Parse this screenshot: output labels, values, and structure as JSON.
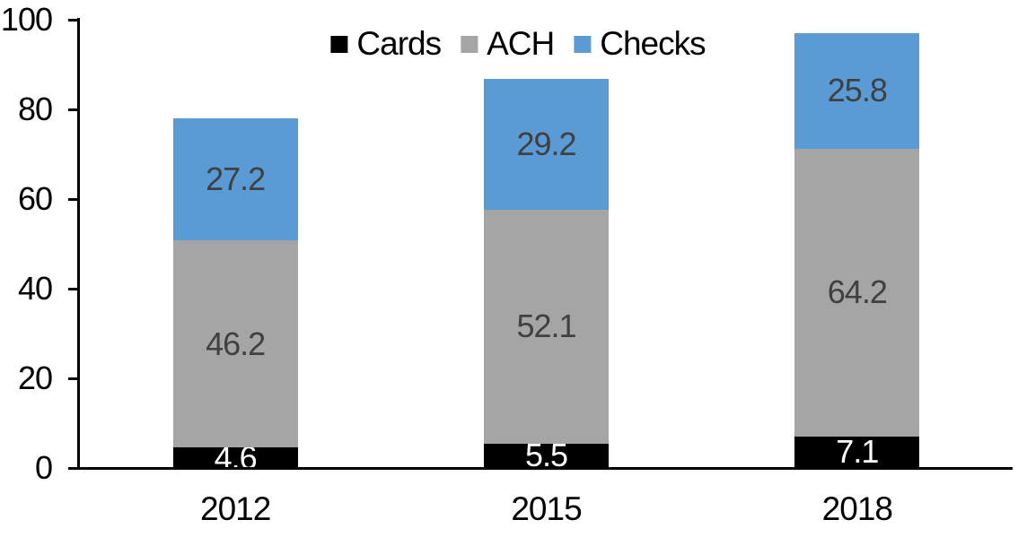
{
  "chart_data": {
    "type": "bar",
    "stacked": true,
    "title": "",
    "categories": [
      "2012",
      "2015",
      "2018"
    ],
    "series": [
      {
        "name": "Cards",
        "color": "#000000",
        "label_color": "#FFFFFF",
        "values": [
          4.6,
          5.5,
          7.1
        ]
      },
      {
        "name": "ACH",
        "color": "#A5A5A5",
        "label_color": "#404040",
        "values": [
          46.2,
          52.1,
          64.2
        ]
      },
      {
        "name": "Checks",
        "color": "#5B9BD5",
        "label_color": "#404040",
        "values": [
          27.2,
          29.2,
          25.8
        ]
      }
    ],
    "totals": [
      78.0,
      86.8,
      97.1
    ],
    "ylim": [
      0,
      100
    ],
    "yticks": [
      0,
      20,
      40,
      60,
      80,
      100
    ],
    "xlabel": "",
    "ylabel": "",
    "grid": false,
    "legend_position": "top",
    "data_labels": true,
    "colors": {
      "axis": "#000000",
      "background": "#FFFFFF"
    }
  }
}
